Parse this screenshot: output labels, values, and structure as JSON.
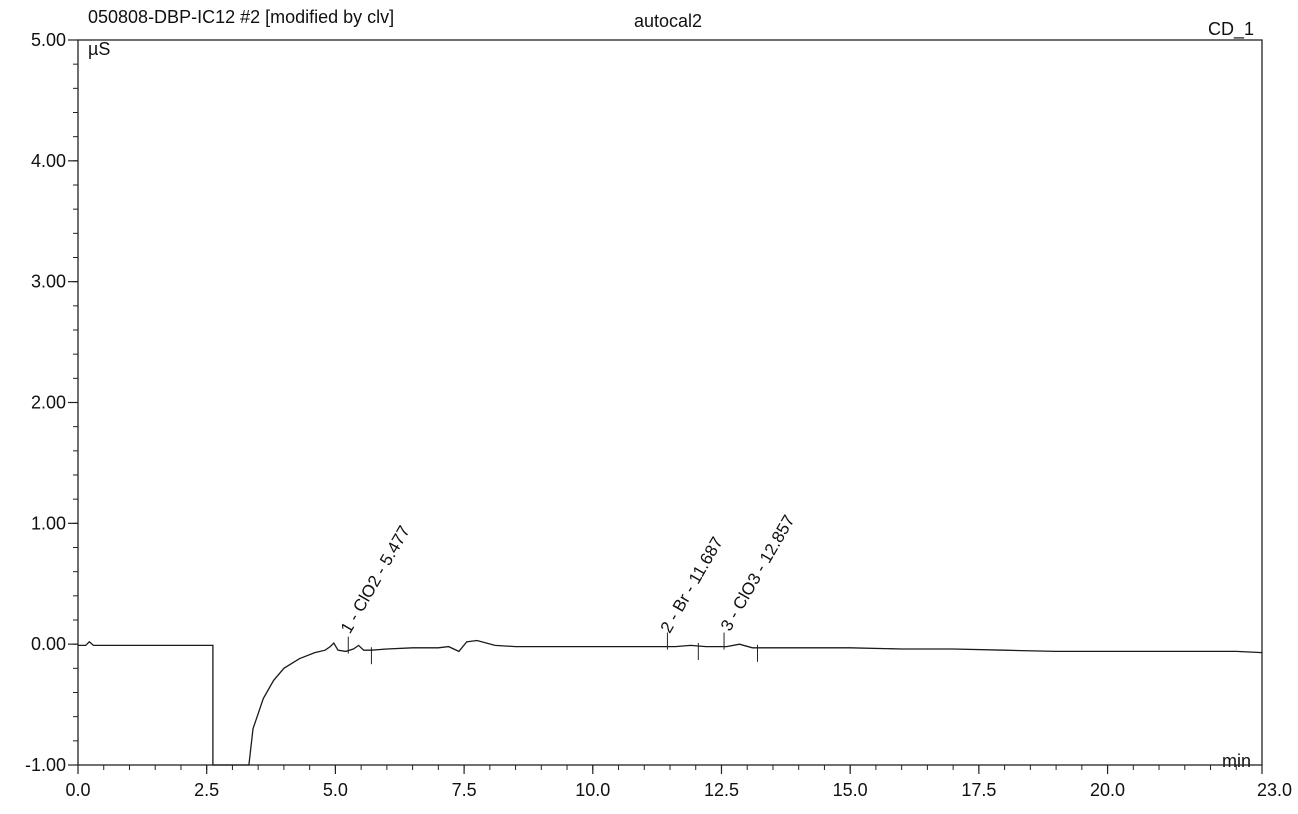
{
  "header": {
    "left": "050808-DBP-IC12 #2 [modified by clv]",
    "center": "autocal2",
    "right": "CD_1"
  },
  "chart_data": {
    "type": "line",
    "title": "",
    "xlabel": "min",
    "ylabel": "µS",
    "xlim": [
      0,
      23
    ],
    "ylim": [
      -1,
      5
    ],
    "x_ticks": [
      "0.0",
      "2.5",
      "5.0",
      "7.5",
      "10.0",
      "12.5",
      "15.0",
      "17.5",
      "20.0",
      "23.0"
    ],
    "y_ticks": [
      "-1.00",
      "0.00",
      "1.00",
      "2.00",
      "3.00",
      "4.00",
      "5.00"
    ],
    "grid": false,
    "series": [
      {
        "x": [
          0.0,
          0.15,
          0.22,
          0.3,
          0.5,
          1.0,
          1.5,
          2.0,
          2.5,
          2.62,
          2.62,
          2.65,
          3.32,
          3.4,
          3.6,
          3.8,
          4.0,
          4.3,
          4.6,
          4.8,
          4.9,
          4.97,
          5.05,
          5.2,
          5.35,
          5.45,
          5.55,
          5.7,
          6.0,
          6.5,
          7.0,
          7.2,
          7.4,
          7.55,
          7.75,
          8.1,
          8.5,
          9.0,
          10.0,
          11.0,
          11.6,
          11.9,
          12.2,
          12.6,
          12.85,
          13.1,
          14.0,
          15.0,
          16.0,
          17.0,
          18.0,
          19.0,
          20.0,
          20.5,
          21.0,
          21.5,
          22.0,
          22.5,
          23.0
        ],
        "y": [
          -0.01,
          -0.01,
          0.02,
          -0.01,
          -0.01,
          -0.01,
          -0.01,
          -0.01,
          -0.01,
          -0.01,
          -1.0,
          -1.0,
          -1.0,
          -0.7,
          -0.45,
          -0.3,
          -0.2,
          -0.12,
          -0.07,
          -0.05,
          -0.02,
          0.01,
          -0.05,
          -0.06,
          -0.04,
          -0.01,
          -0.05,
          -0.05,
          -0.04,
          -0.03,
          -0.03,
          -0.02,
          -0.06,
          0.02,
          0.03,
          -0.01,
          -0.02,
          -0.02,
          -0.02,
          -0.02,
          -0.02,
          -0.01,
          -0.02,
          -0.02,
          0.0,
          -0.03,
          -0.03,
          -0.03,
          -0.04,
          -0.04,
          -0.05,
          -0.06,
          -0.06,
          -0.06,
          -0.06,
          -0.06,
          -0.06,
          -0.06,
          -0.07
        ]
      }
    ],
    "peaks": [
      {
        "label": "1 - ClO2 - 5.477",
        "rt": 5.477,
        "start": 5.25,
        "end": 5.7
      },
      {
        "label": "2 - Br - 11.687",
        "rt": 11.687,
        "start": 11.45,
        "end": 12.05
      },
      {
        "label": "3 - ClO3 - 12.857",
        "rt": 12.857,
        "start": 12.55,
        "end": 13.2
      }
    ]
  }
}
